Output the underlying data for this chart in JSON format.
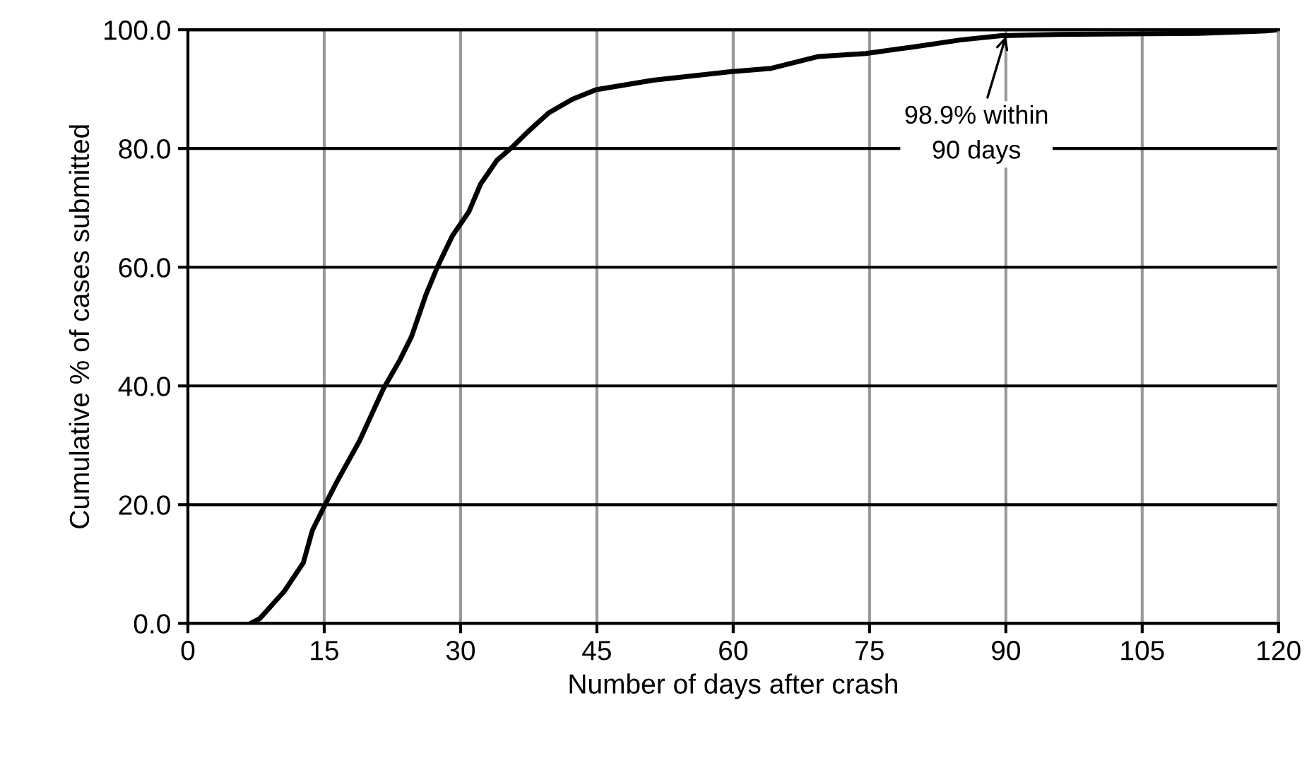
{
  "chart_data": {
    "type": "line",
    "xlabel": "Number of days after crash",
    "ylabel": "Cumulative % of cases submitted",
    "x": [
      6.9,
      7.9,
      10.6,
      12.7,
      13.7,
      15,
      16.3,
      18.9,
      21.5,
      23.3,
      24.6,
      26.2,
      27.5,
      29.1,
      30.9,
      32.2,
      34.0,
      35.8,
      37.4,
      39.7,
      42.3,
      44.9,
      51.2,
      59.5,
      64.2,
      67.3,
      69.4,
      74.6,
      79.8,
      85.1,
      89.5,
      95.5,
      111.1,
      118.6,
      120
    ],
    "series": [
      {
        "color": "#000000",
        "values": [
          0,
          0.8,
          5.4,
          10.2,
          15.7,
          19.7,
          23.6,
          30.8,
          39.5,
          44.3,
          48.3,
          55.4,
          60.2,
          65.3,
          69.3,
          74.0,
          78.0,
          80.4,
          82.8,
          86.0,
          88.3,
          89.9,
          91.5,
          92.9,
          93.5,
          94.7,
          95.5,
          96.0,
          97.1,
          98.3,
          99.0,
          99.2,
          99.4,
          99.8,
          100
        ]
      }
    ],
    "xlim": [
      0,
      120
    ],
    "ylim": [
      0,
      100
    ],
    "xticks": [
      0,
      15,
      30,
      45,
      60,
      75,
      90,
      105,
      120
    ],
    "yticks": [
      {
        "value": 0,
        "label": "0.0"
      },
      {
        "value": 20,
        "label": "20.0"
      },
      {
        "value": 40,
        "label": "40.0"
      },
      {
        "value": 60,
        "label": "60.0"
      },
      {
        "value": 80,
        "label": "80.0"
      },
      {
        "value": 100,
        "label": "100.0"
      }
    ],
    "grid": true,
    "marker": "none",
    "line_style": "solid",
    "annotations": [
      {
        "text": "98.9% within\n90 days",
        "x": 90,
        "y": 98.9
      }
    ]
  }
}
